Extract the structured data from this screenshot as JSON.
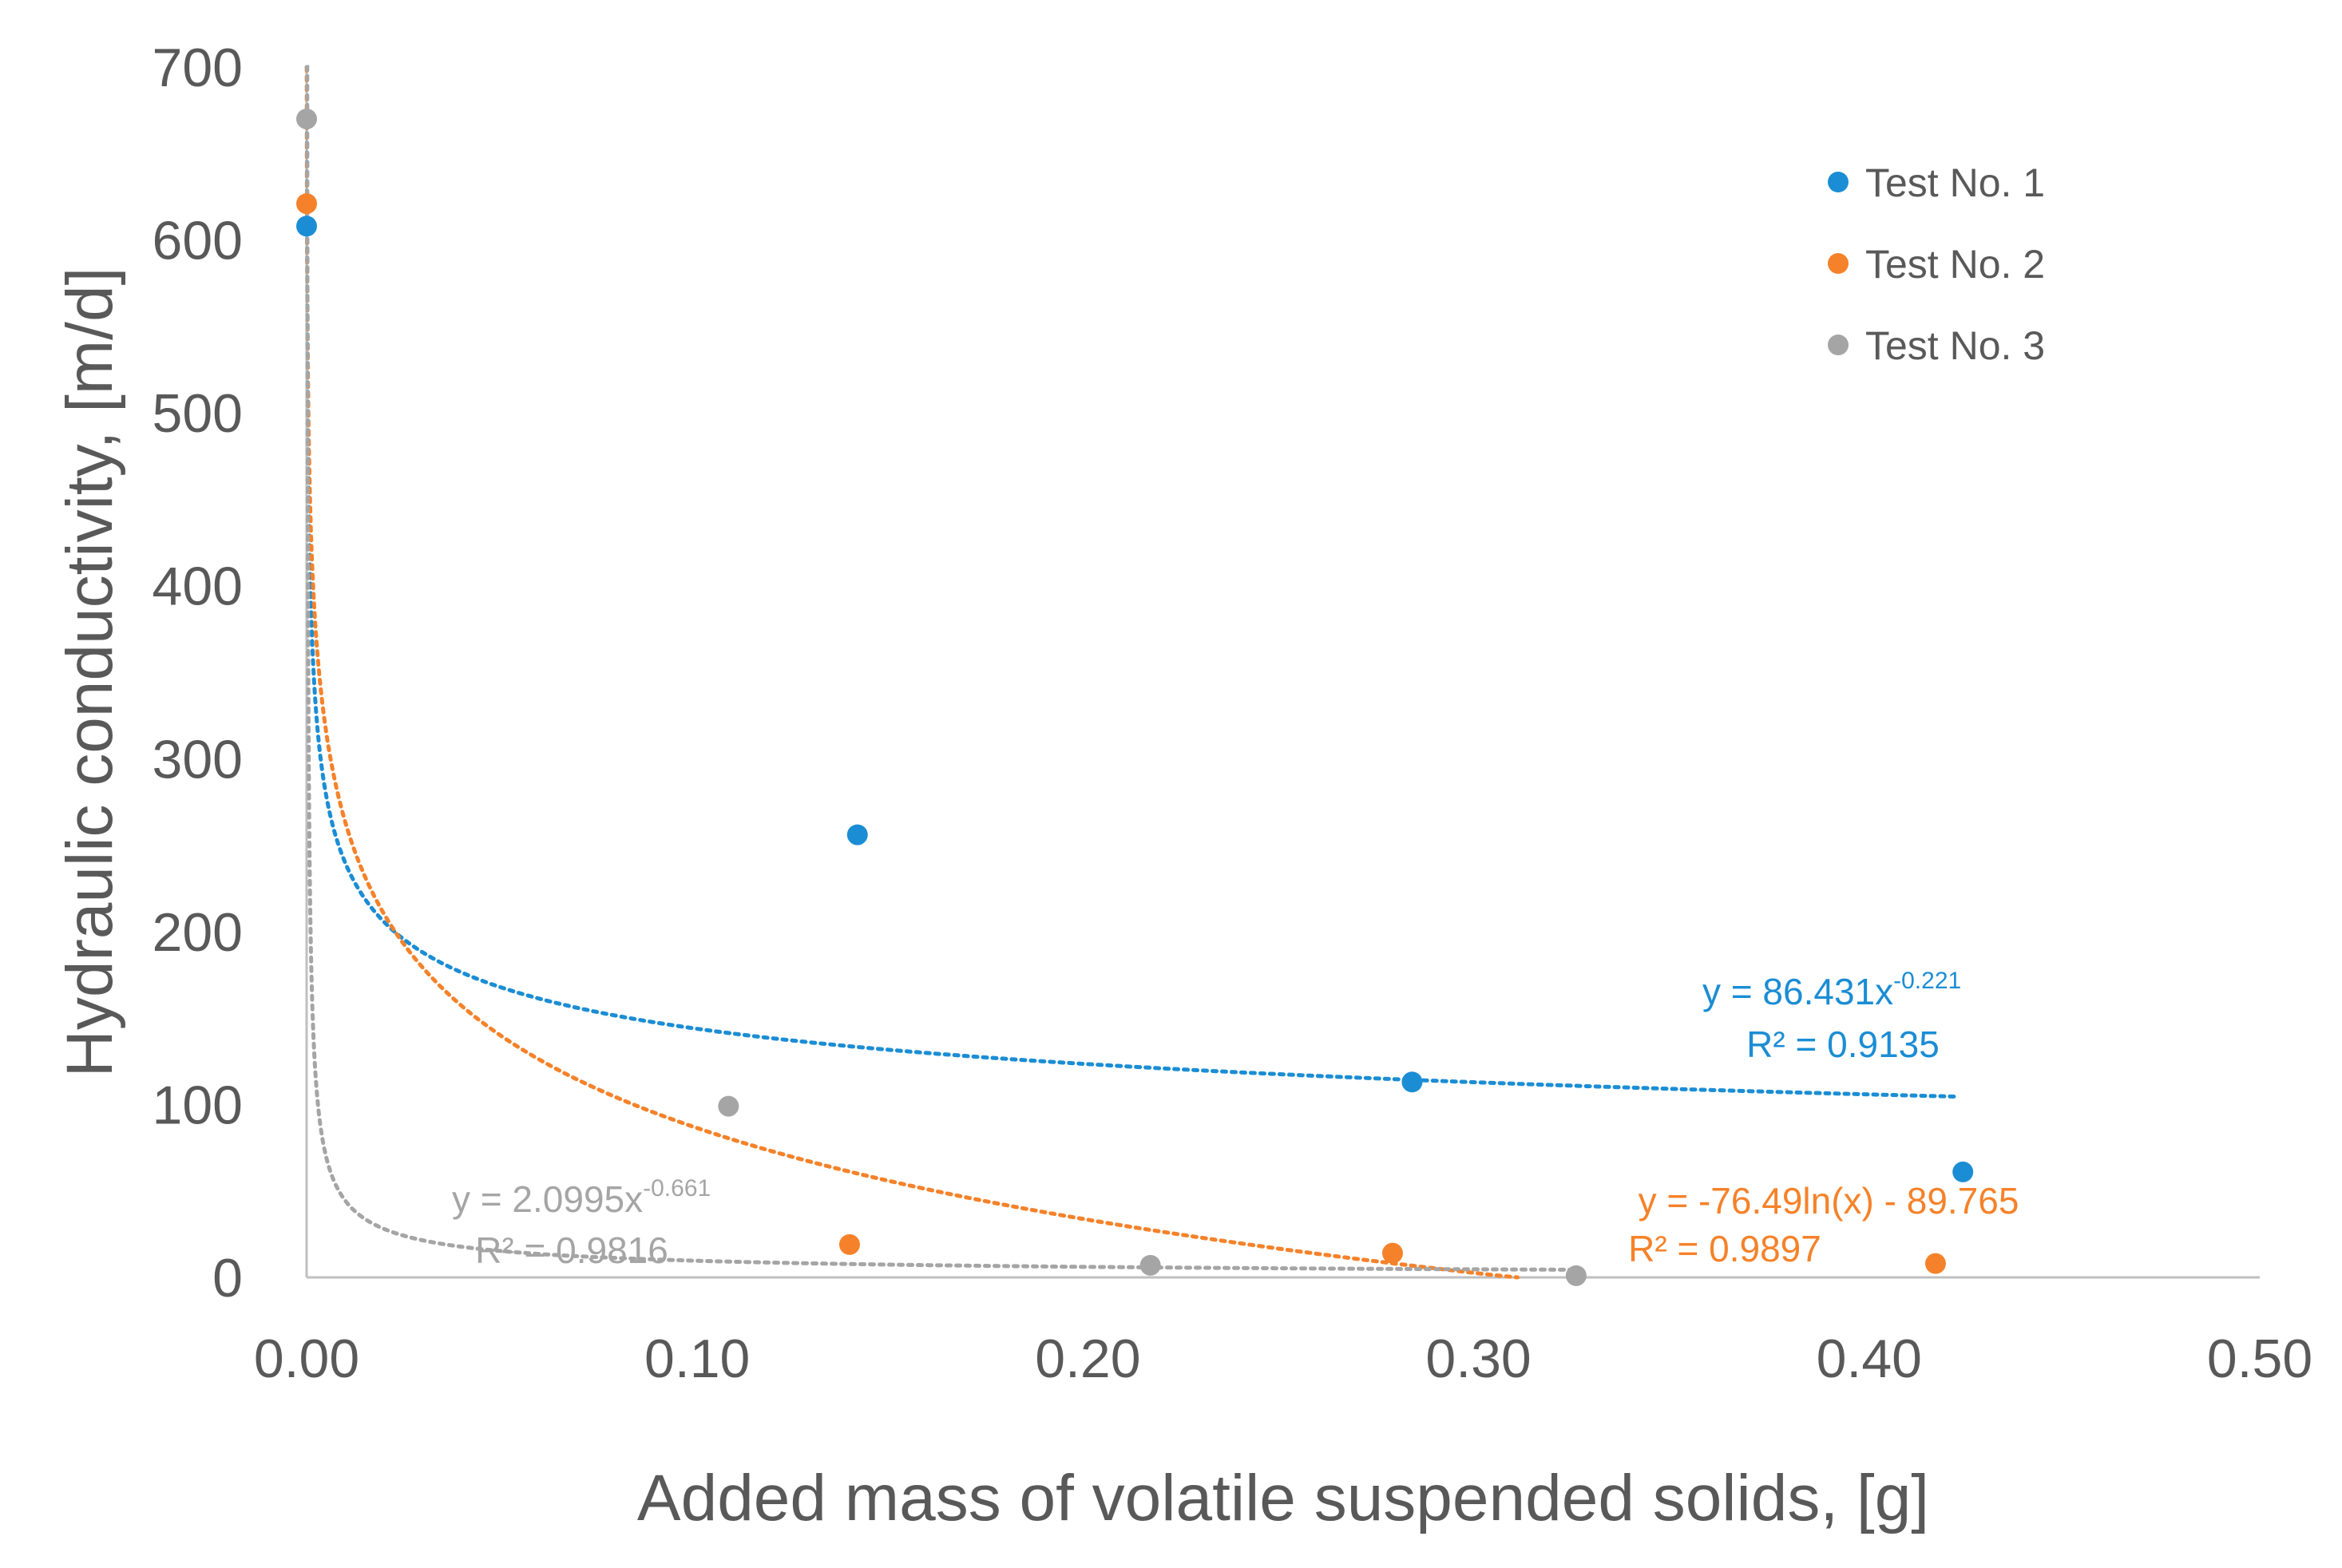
{
  "chart_data": {
    "type": "scatter",
    "title": "",
    "xlabel": "Added mass of volatile suspended solids, [g]",
    "ylabel": "Hydraulic conductivity, [m/d]",
    "xlim": [
      0,
      0.5
    ],
    "ylim": [
      0,
      700
    ],
    "x_ticks": [
      "0.00",
      "0.10",
      "0.20",
      "0.30",
      "0.40",
      "0.50"
    ],
    "y_ticks": [
      "0",
      "100",
      "200",
      "300",
      "400",
      "500",
      "600",
      "700"
    ],
    "grid": false,
    "legend_position": "top-right",
    "series": [
      {
        "name": "Test No. 1",
        "color": "#1B8DD4",
        "points": [
          {
            "x": 0.0,
            "y": 608
          },
          {
            "x": 0.141,
            "y": 256
          },
          {
            "x": 0.283,
            "y": 113
          },
          {
            "x": 0.424,
            "y": 61
          }
        ],
        "trendline": {
          "type": "power",
          "a": 86.431,
          "b": -0.221,
          "x_range": [
            0.0001,
            0.422
          ],
          "equation_prefix": "y = 86.431x",
          "equation_exponent": "-0.221",
          "r2_label": "R² = 0.9135"
        }
      },
      {
        "name": "Test No. 2",
        "color": "#F5822A",
        "points": [
          {
            "x": 0.0,
            "y": 621
          },
          {
            "x": 0.139,
            "y": 19
          },
          {
            "x": 0.278,
            "y": 14
          },
          {
            "x": 0.417,
            "y": 8
          }
        ],
        "trendline": {
          "type": "log",
          "a": -76.49,
          "b": -89.765,
          "x_range": [
            1e-05,
            0.31
          ],
          "equation": "y = -76.49ln(x) - 89.765",
          "r2_label": "R² = 0.9897"
        }
      },
      {
        "name": "Test No. 3",
        "color": "#A5A5A5",
        "points": [
          {
            "x": 0.0,
            "y": 670
          },
          {
            "x": 0.108,
            "y": 99
          },
          {
            "x": 0.216,
            "y": 7
          },
          {
            "x": 0.325,
            "y": 1
          }
        ],
        "trendline": {
          "type": "power",
          "a": 2.0995,
          "b": -0.661,
          "x_range": [
            1e-05,
            0.325
          ],
          "equation_prefix": "y = 2.0995x",
          "equation_exponent": "-0.661",
          "r2_label": "R² = 0.9816"
        }
      }
    ]
  }
}
